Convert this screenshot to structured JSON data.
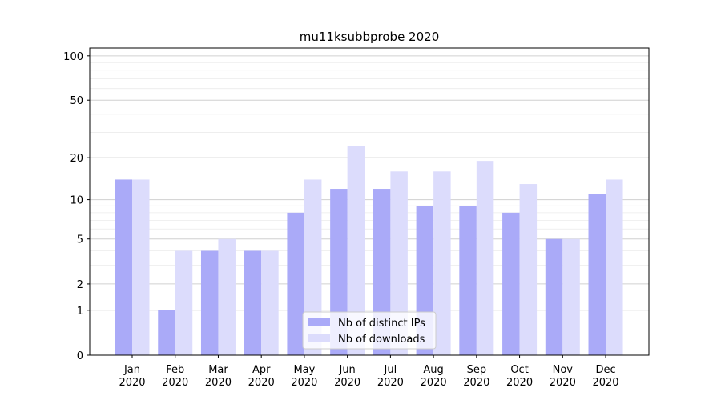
{
  "chart_data": {
    "type": "bar",
    "title": "mu11ksubbprobe 2020",
    "categories": [
      "Jan 2020",
      "Feb 2020",
      "Mar 2020",
      "Apr 2020",
      "May 2020",
      "Jun 2020",
      "Jul 2020",
      "Aug 2020",
      "Sep 2020",
      "Oct 2020",
      "Nov 2020",
      "Dec 2020"
    ],
    "series": [
      {
        "name": "Nb of distinct IPs",
        "color": "#aaaaf8",
        "values": [
          14,
          1,
          4,
          4,
          8,
          12,
          12,
          9,
          9,
          8,
          5,
          11
        ]
      },
      {
        "name": "Nb of downloads",
        "color": "#dcdcfc",
        "values": [
          14,
          4,
          5,
          4,
          14,
          24,
          16,
          16,
          19,
          13,
          5,
          14
        ]
      }
    ],
    "yscale": "log1p",
    "ylim": [
      0,
      113
    ],
    "yticks": [
      0,
      1,
      2,
      5,
      10,
      20,
      50,
      100
    ],
    "minor_yticks": [
      3,
      4,
      6,
      7,
      8,
      9,
      30,
      40,
      60,
      70,
      80,
      90
    ],
    "grid": true,
    "legend": "lower center"
  }
}
